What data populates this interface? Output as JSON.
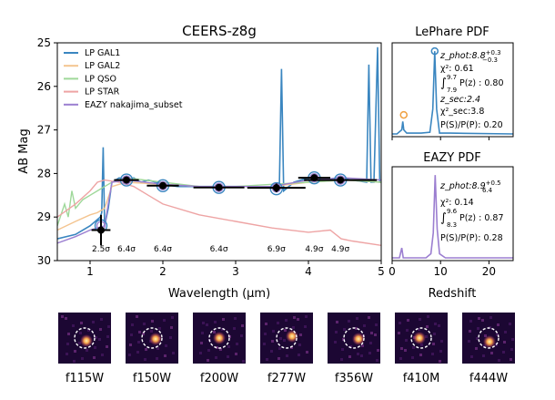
{
  "chart_data": [
    {
      "type": "line",
      "title": "CEERS-z8g",
      "xlabel": "Wavelength (μm)",
      "ylabel": "AB Mag",
      "xlim": [
        0.55,
        5.0
      ],
      "ylim": [
        30,
        25
      ],
      "inverted_y": true,
      "xticks": [
        "1",
        "2",
        "3",
        "4",
        "5"
      ],
      "yticks": [
        "25",
        "26",
        "27",
        "28",
        "29",
        "30"
      ],
      "legend": {
        "placement": "top-left",
        "entries": [
          {
            "name": "LP GAL1",
            "color": "#3a86c0"
          },
          {
            "name": "LP GAL2",
            "color": "#f4c48f"
          },
          {
            "name": "LP QSO",
            "color": "#9fd89a"
          },
          {
            "name": "LP STAR",
            "color": "#eea4a4"
          },
          {
            "name": "EAZY nakajima_subset",
            "color": "#9b7ed0"
          }
        ]
      },
      "series": [
        {
          "name": "LP GAL1",
          "color": "#3a86c0",
          "points": [
            [
              0.55,
              29.5
            ],
            [
              0.8,
              29.4
            ],
            [
              1.0,
              29.2
            ],
            [
              1.14,
              29.0
            ],
            [
              1.16,
              28.9
            ],
            [
              1.18,
              27.4
            ],
            [
              1.2,
              29.2
            ],
            [
              1.25,
              28.8
            ],
            [
              1.3,
              28.2
            ],
            [
              1.4,
              28.1
            ],
            [
              1.5,
              28.15
            ],
            [
              1.6,
              28.1
            ],
            [
              1.7,
              28.2
            ],
            [
              1.8,
              28.15
            ],
            [
              2.0,
              28.25
            ],
            [
              2.2,
              28.3
            ],
            [
              2.5,
              28.3
            ],
            [
              3.0,
              28.3
            ],
            [
              3.3,
              28.3
            ],
            [
              3.6,
              28.35
            ],
            [
              3.63,
              25.6
            ],
            [
              3.66,
              28.4
            ],
            [
              3.8,
              28.2
            ],
            [
              4.0,
              28.1
            ],
            [
              4.2,
              28.15
            ],
            [
              4.4,
              28.1
            ],
            [
              4.6,
              28.15
            ],
            [
              4.8,
              28.2
            ],
            [
              4.83,
              25.5
            ],
            [
              4.86,
              28.2
            ],
            [
              4.9,
              28.2
            ],
            [
              4.95,
              25.1
            ],
            [
              4.98,
              28.2
            ],
            [
              5.0,
              28.2
            ]
          ]
        },
        {
          "name": "LP GAL2",
          "color": "#f4c48f",
          "points": [
            [
              0.55,
              29.3
            ],
            [
              0.8,
              29.1
            ],
            [
              1.0,
              28.95
            ],
            [
              1.1,
              28.9
            ],
            [
              1.2,
              28.8
            ],
            [
              1.3,
              28.3
            ],
            [
              1.5,
              28.2
            ],
            [
              2.0,
              28.25
            ],
            [
              2.5,
              28.3
            ],
            [
              3.0,
              28.3
            ],
            [
              3.5,
              28.3
            ],
            [
              4.0,
              28.2
            ],
            [
              4.5,
              28.15
            ],
            [
              5.0,
              28.2
            ]
          ]
        },
        {
          "name": "LP QSO",
          "color": "#9fd89a",
          "points": [
            [
              0.55,
              29.2
            ],
            [
              0.65,
              28.7
            ],
            [
              0.7,
              29.0
            ],
            [
              0.75,
              28.4
            ],
            [
              0.8,
              28.8
            ],
            [
              0.9,
              28.6
            ],
            [
              1.0,
              28.5
            ],
            [
              1.1,
              28.4
            ],
            [
              1.2,
              28.3
            ],
            [
              1.3,
              28.2
            ],
            [
              1.5,
              28.1
            ],
            [
              2.0,
              28.2
            ],
            [
              2.5,
              28.3
            ],
            [
              3.0,
              28.3
            ],
            [
              3.5,
              28.25
            ],
            [
              4.0,
              28.2
            ],
            [
              4.5,
              28.15
            ],
            [
              5.0,
              28.2
            ]
          ]
        },
        {
          "name": "LP STAR",
          "color": "#eea4a4",
          "points": [
            [
              0.55,
              29.0
            ],
            [
              0.8,
              28.7
            ],
            [
              1.0,
              28.4
            ],
            [
              1.1,
              28.2
            ],
            [
              1.2,
              28.15
            ],
            [
              1.4,
              28.2
            ],
            [
              1.6,
              28.3
            ],
            [
              1.8,
              28.5
            ],
            [
              2.0,
              28.7
            ],
            [
              2.5,
              28.95
            ],
            [
              3.0,
              29.1
            ],
            [
              3.5,
              29.25
            ],
            [
              4.0,
              29.35
            ],
            [
              4.3,
              29.3
            ],
            [
              4.45,
              29.5
            ],
            [
              4.6,
              29.55
            ],
            [
              5.0,
              29.65
            ]
          ]
        },
        {
          "name": "EAZY nakajima_subset",
          "color": "#9b7ed0",
          "points": [
            [
              0.55,
              29.6
            ],
            [
              0.8,
              29.45
            ],
            [
              1.0,
              29.3
            ],
            [
              1.2,
              29.2
            ],
            [
              1.25,
              28.7
            ],
            [
              1.3,
              28.2
            ],
            [
              1.5,
              28.15
            ],
            [
              2.0,
              28.25
            ],
            [
              2.5,
              28.3
            ],
            [
              3.0,
              28.3
            ],
            [
              3.5,
              28.3
            ],
            [
              4.0,
              28.15
            ],
            [
              4.5,
              28.1
            ],
            [
              5.0,
              28.15
            ]
          ]
        }
      ],
      "photometry": [
        {
          "x": 1.15,
          "y": 29.3,
          "xerr": 0.13,
          "yerr": 0.35,
          "sn": "2.5σ"
        },
        {
          "x": 1.5,
          "y": 28.15,
          "xerr": 0.17,
          "yerr": 0.08,
          "sn": "6.4σ"
        },
        {
          "x": 2.0,
          "y": 28.28,
          "xerr": 0.22,
          "yerr": 0.08,
          "sn": "6.4σ"
        },
        {
          "x": 2.77,
          "y": 28.32,
          "xerr": 0.35,
          "yerr": 0.05,
          "sn": "6.4σ"
        },
        {
          "x": 3.56,
          "y": 28.33,
          "xerr": 0.4,
          "yerr": 0.1,
          "sn": "6.9σ"
        },
        {
          "x": 4.08,
          "y": 28.1,
          "xerr": 0.22,
          "yerr": 0.05,
          "sn": "4.9σ"
        },
        {
          "x": 4.44,
          "y": 28.15,
          "xerr": 0.5,
          "yerr": 0.05,
          "sn": "4.9σ"
        }
      ],
      "model_mags_gal1": [
        29.2,
        28.15,
        28.28,
        28.32,
        28.35,
        28.1,
        28.15
      ],
      "model_mags_eazy": [
        29.2,
        28.15,
        28.28,
        28.32,
        28.33,
        28.1,
        28.15
      ]
    },
    {
      "type": "line",
      "title": "LePhare PDF",
      "xlabel": "",
      "xlim": [
        0,
        25
      ],
      "ylim": [
        0,
        1.1
      ],
      "color": "#3a86c0",
      "points": [
        [
          0,
          0
        ],
        [
          1,
          0
        ],
        [
          2,
          0.05
        ],
        [
          2.2,
          0.15
        ],
        [
          2.4,
          0.05
        ],
        [
          3,
          0.01
        ],
        [
          6,
          0.01
        ],
        [
          7.8,
          0.02
        ],
        [
          8.4,
          0.3
        ],
        [
          8.8,
          1.0
        ],
        [
          9.2,
          0.3
        ],
        [
          9.8,
          0.01
        ],
        [
          12,
          0.01
        ],
        [
          25,
          0.0
        ]
      ],
      "markers": [
        {
          "x": 8.8,
          "y": 1.0,
          "color": "#3a86c0"
        },
        {
          "x": 2.4,
          "y": 0.23,
          "color": "#f0a040"
        }
      ],
      "annotations": {
        "zphot": "z_phot:8.8",
        "zphot_sup": "+0.3",
        "zphot_sub": "−0.3",
        "chi2": "χ²: 0.61",
        "int_upper": "9.7",
        "int_lower": "7.9",
        "int_value": "P(z) : 0.80",
        "zsec": "z_sec:2.4",
        "chi2sec": "χ²_sec:3.8",
        "ratio": "P(S)/P(P): 0.20"
      }
    },
    {
      "type": "line",
      "title": "EAZY PDF",
      "xlabel": "Redshift",
      "xlim": [
        0,
        25
      ],
      "ylim": [
        0,
        1.1
      ],
      "xticks": [
        "0",
        "10",
        "20"
      ],
      "color": "#9b7ed0",
      "points": [
        [
          0,
          0
        ],
        [
          1.5,
          0
        ],
        [
          2.0,
          0.12
        ],
        [
          2.3,
          0.0
        ],
        [
          7,
          0.0
        ],
        [
          8.0,
          0.05
        ],
        [
          8.5,
          0.3
        ],
        [
          8.9,
          1.0
        ],
        [
          9.3,
          0.35
        ],
        [
          9.8,
          0.05
        ],
        [
          11,
          0.0
        ],
        [
          25,
          0.0
        ]
      ],
      "annotations": {
        "zphot": "z_phot:8.9",
        "zphot_sup": "+0.5",
        "zphot_sub": "6.4",
        "chi2": "χ²: 0.14",
        "int_upper": "9.6",
        "int_lower": "8.3",
        "int_value": "P(z) : 0.87",
        "ratio": "P(S)/P(P): 0.28"
      }
    }
  ],
  "cutouts": [
    {
      "label": "f115W"
    },
    {
      "label": "f150W"
    },
    {
      "label": "f200W"
    },
    {
      "label": "f277W"
    },
    {
      "label": "f356W"
    },
    {
      "label": "f410M"
    },
    {
      "label": "f444W"
    }
  ],
  "colors": {
    "cutout_bg": "#1c0733",
    "source": "#f6b04f",
    "aperture": "#ffffff"
  }
}
